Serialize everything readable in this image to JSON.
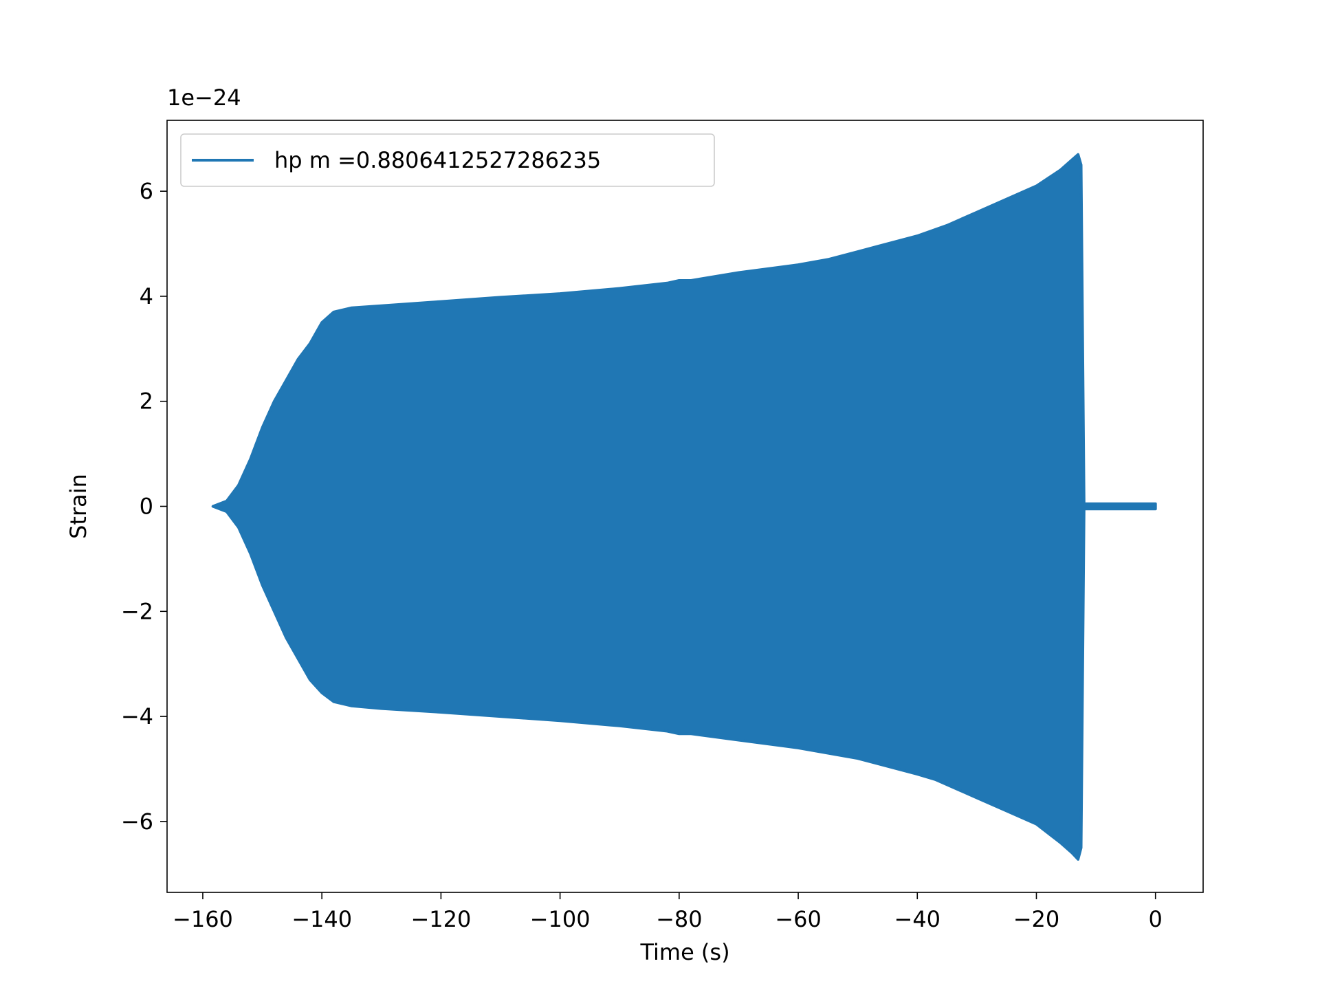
{
  "chart_data": {
    "type": "line",
    "title": "",
    "xlabel": "Time (s)",
    "ylabel": "Strain",
    "y_offset_label": "1e−24",
    "xlim": [
      -166,
      8
    ],
    "ylim": [
      -7.35,
      7.35
    ],
    "grid": false,
    "legend_position": "upper left",
    "x_ticks": [
      -160,
      -140,
      -120,
      -100,
      -80,
      -60,
      -40,
      -20,
      0
    ],
    "x_tick_labels": [
      "−160",
      "−140",
      "−120",
      "−100",
      "−80",
      "−60",
      "−40",
      "−20",
      "0"
    ],
    "y_ticks": [
      -6,
      -4,
      -2,
      0,
      2,
      4,
      6
    ],
    "y_tick_labels": [
      "−6",
      "−4",
      "−2",
      "0",
      "2",
      "4",
      "6"
    ],
    "series": [
      {
        "name": "hp m =0.8806412527286235",
        "color": "#2077b4",
        "envelope_upper": [
          [
            -158.3,
            0.0
          ],
          [
            -156,
            0.1
          ],
          [
            -154,
            0.4
          ],
          [
            -152,
            0.9
          ],
          [
            -150,
            1.5
          ],
          [
            -148,
            2.0
          ],
          [
            -146,
            2.4
          ],
          [
            -144,
            2.8
          ],
          [
            -142,
            3.1
          ],
          [
            -140,
            3.5
          ],
          [
            -138,
            3.7
          ],
          [
            -135,
            3.78
          ],
          [
            -130,
            3.82
          ],
          [
            -120,
            3.9
          ],
          [
            -110,
            3.98
          ],
          [
            -100,
            4.05
          ],
          [
            -90,
            4.15
          ],
          [
            -82,
            4.25
          ],
          [
            -80,
            4.3
          ],
          [
            -78,
            4.3
          ],
          [
            -70,
            4.45
          ],
          [
            -60,
            4.6
          ],
          [
            -55,
            4.7
          ],
          [
            -50,
            4.85
          ],
          [
            -40,
            5.15
          ],
          [
            -35,
            5.35
          ],
          [
            -30,
            5.6
          ],
          [
            -25,
            5.85
          ],
          [
            -20,
            6.1
          ],
          [
            -16,
            6.4
          ],
          [
            -14,
            6.6
          ],
          [
            -13,
            6.7
          ],
          [
            -12.5,
            6.5
          ],
          [
            -12,
            0.05
          ],
          [
            0,
            0.05
          ]
        ],
        "envelope_lower": [
          [
            -158.3,
            0.0
          ],
          [
            -156,
            -0.1
          ],
          [
            -154,
            -0.4
          ],
          [
            -152,
            -0.9
          ],
          [
            -150,
            -1.5
          ],
          [
            -148,
            -2.0
          ],
          [
            -146,
            -2.5
          ],
          [
            -144,
            -2.9
          ],
          [
            -142,
            -3.3
          ],
          [
            -140,
            -3.55
          ],
          [
            -138,
            -3.72
          ],
          [
            -135,
            -3.8
          ],
          [
            -130,
            -3.85
          ],
          [
            -120,
            -3.92
          ],
          [
            -110,
            -4.0
          ],
          [
            -100,
            -4.08
          ],
          [
            -90,
            -4.18
          ],
          [
            -82,
            -4.28
          ],
          [
            -80,
            -4.33
          ],
          [
            -78,
            -4.33
          ],
          [
            -70,
            -4.45
          ],
          [
            -60,
            -4.6
          ],
          [
            -50,
            -4.8
          ],
          [
            -40,
            -5.1
          ],
          [
            -37,
            -5.2
          ],
          [
            -35,
            -5.3
          ],
          [
            -30,
            -5.55
          ],
          [
            -25,
            -5.8
          ],
          [
            -20,
            -6.05
          ],
          [
            -16,
            -6.4
          ],
          [
            -14,
            -6.6
          ],
          [
            -13,
            -6.72
          ],
          [
            -12.5,
            -6.5
          ],
          [
            -12,
            -0.05
          ],
          [
            0,
            -0.05
          ]
        ]
      }
    ]
  }
}
